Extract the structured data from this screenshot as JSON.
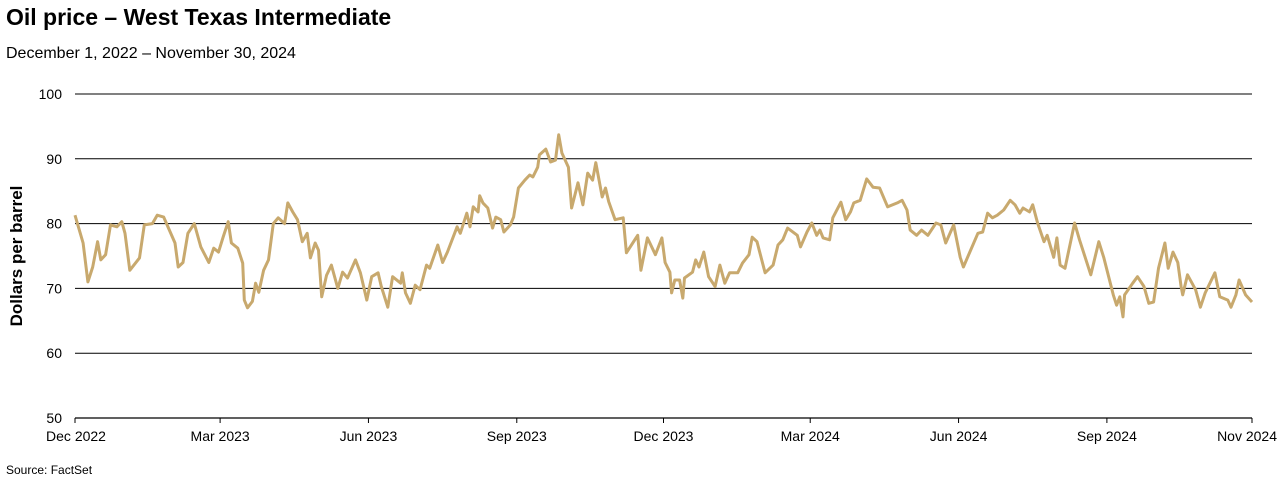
{
  "chart_data": {
    "type": "line",
    "title": "Oil price – West Texas Intermediate",
    "subtitle": "December 1, 2022 – November 30, 2024",
    "xlabel": "",
    "ylabel": "Dollars per barrel",
    "source": "Source: FactSet",
    "ylim": [
      50,
      100
    ],
    "yticks": [
      50,
      60,
      70,
      80,
      90,
      100
    ],
    "xlim": [
      "2022-12-01",
      "2024-11-30"
    ],
    "xticks": [
      {
        "date": "2022-12-01",
        "label": "Dec 2022"
      },
      {
        "date": "2023-03-01",
        "label": "Mar 2023"
      },
      {
        "date": "2023-06-01",
        "label": "Jun 2023"
      },
      {
        "date": "2023-09-01",
        "label": "Sep 2023"
      },
      {
        "date": "2023-12-01",
        "label": "Dec 2023"
      },
      {
        "date": "2024-03-01",
        "label": "Mar 2024"
      },
      {
        "date": "2024-06-01",
        "label": "Jun 2024"
      },
      {
        "date": "2024-09-01",
        "label": "Sep 2024"
      },
      {
        "date": "2024-11-30",
        "label": "Nov 2024"
      }
    ],
    "grid": true,
    "line_color": "#C8A96E",
    "series": [
      {
        "x": [
          "2022-12-01",
          "2022-12-06",
          "2022-12-09",
          "2022-12-12",
          "2022-12-15",
          "2022-12-17",
          "2022-12-20",
          "2022-12-23",
          "2022-12-27",
          "2022-12-30",
          "2023-01-01",
          "2023-01-04",
          "2023-01-10",
          "2023-01-13",
          "2023-01-18",
          "2023-01-21",
          "2023-01-25",
          "2023-01-28",
          "2023-02-01",
          "2023-02-03",
          "2023-02-06",
          "2023-02-09",
          "2023-02-13",
          "2023-02-17",
          "2023-02-22",
          "2023-02-25",
          "2023-02-28",
          "2023-03-03",
          "2023-03-06",
          "2023-03-08",
          "2023-03-12",
          "2023-03-15",
          "2023-03-16",
          "2023-03-18",
          "2023-03-21",
          "2023-03-23",
          "2023-03-25",
          "2023-03-28",
          "2023-03-31",
          "2023-04-03",
          "2023-04-06",
          "2023-04-10",
          "2023-04-12",
          "2023-04-15",
          "2023-04-18",
          "2023-04-21",
          "2023-04-24",
          "2023-04-26",
          "2023-04-29",
          "2023-05-01",
          "2023-05-03",
          "2023-05-06",
          "2023-05-09",
          "2023-05-13",
          "2023-05-16",
          "2023-05-19",
          "2023-05-24",
          "2023-05-27",
          "2023-05-31",
          "2023-06-03",
          "2023-06-07",
          "2023-06-09",
          "2023-06-13",
          "2023-06-16",
          "2023-06-21",
          "2023-06-22",
          "2023-06-24",
          "2023-06-27",
          "2023-06-30",
          "2023-07-03",
          "2023-07-07",
          "2023-07-09",
          "2023-07-14",
          "2023-07-17",
          "2023-07-20",
          "2023-07-26",
          "2023-07-28",
          "2023-08-01",
          "2023-08-03",
          "2023-08-05",
          "2023-08-08",
          "2023-08-09",
          "2023-08-11",
          "2023-08-14",
          "2023-08-17",
          "2023-08-19",
          "2023-08-22",
          "2023-08-24",
          "2023-08-28",
          "2023-08-30",
          "2023-09-02",
          "2023-09-06",
          "2023-09-09",
          "2023-09-11",
          "2023-09-14",
          "2023-09-15",
          "2023-09-19",
          "2023-09-22",
          "2023-09-25",
          "2023-09-27",
          "2023-09-29",
          "2023-10-03",
          "2023-10-05",
          "2023-10-09",
          "2023-10-12",
          "2023-10-15",
          "2023-10-18",
          "2023-10-20",
          "2023-10-24",
          "2023-10-26",
          "2023-10-28",
          "2023-11-01",
          "2023-11-06",
          "2023-11-08",
          "2023-11-15",
          "2023-11-17",
          "2023-11-21",
          "2023-11-26",
          "2023-11-30",
          "2023-12-02",
          "2023-12-05",
          "2023-12-06",
          "2023-12-08",
          "2023-12-11",
          "2023-12-13",
          "2023-12-14",
          "2023-12-19",
          "2023-12-21",
          "2023-12-23",
          "2023-12-26",
          "2023-12-29",
          "2024-01-02",
          "2024-01-05",
          "2024-01-08",
          "2024-01-11",
          "2024-01-16",
          "2024-01-19",
          "2024-01-23",
          "2024-01-25",
          "2024-01-28",
          "2024-02-02",
          "2024-02-07",
          "2024-02-10",
          "2024-02-13",
          "2024-02-16",
          "2024-02-22",
          "2024-02-24",
          "2024-02-28",
          "2024-03-02",
          "2024-03-05",
          "2024-03-07",
          "2024-03-09",
          "2024-03-13",
          "2024-03-15",
          "2024-03-20",
          "2024-03-23",
          "2024-03-26",
          "2024-03-28",
          "2024-04-01",
          "2024-04-05",
          "2024-04-09",
          "2024-04-13",
          "2024-04-18",
          "2024-04-24",
          "2024-04-27",
          "2024-04-30",
          "2024-05-02",
          "2024-05-06",
          "2024-05-09",
          "2024-05-13",
          "2024-05-18",
          "2024-05-21",
          "2024-05-24",
          "2024-05-29",
          "2024-06-02",
          "2024-06-04",
          "2024-06-08",
          "2024-06-13",
          "2024-06-16",
          "2024-06-19",
          "2024-06-22",
          "2024-06-25",
          "2024-06-29",
          "2024-07-03",
          "2024-07-06",
          "2024-07-09",
          "2024-07-11",
          "2024-07-15",
          "2024-07-17",
          "2024-07-20",
          "2024-07-24",
          "2024-07-26",
          "2024-07-30",
          "2024-08-01",
          "2024-08-03",
          "2024-08-06",
          "2024-08-12",
          "2024-08-15",
          "2024-08-22",
          "2024-08-27",
          "2024-08-30",
          "2024-09-05",
          "2024-09-07",
          "2024-09-09",
          "2024-09-11",
          "2024-09-12",
          "2024-09-17",
          "2024-09-20",
          "2024-09-24",
          "2024-09-27",
          "2024-09-30",
          "2024-10-03",
          "2024-10-07",
          "2024-10-09",
          "2024-10-12",
          "2024-10-15",
          "2024-10-17",
          "2024-10-18",
          "2024-10-21",
          "2024-10-26",
          "2024-10-29",
          "2024-11-01",
          "2024-11-07",
          "2024-11-10",
          "2024-11-15",
          "2024-11-17",
          "2024-11-20",
          "2024-11-22",
          "2024-11-26",
          "2024-11-30"
        ],
        "y": [
          81.3,
          77,
          71,
          73.3,
          77.2,
          74.4,
          75.2,
          79.8,
          79.5,
          80.3,
          78.5,
          72.8,
          74.7,
          79.8,
          80,
          81.3,
          81,
          79.3,
          77,
          73.3,
          74,
          78.5,
          80,
          76.4,
          74,
          76.2,
          75.6,
          78,
          80.3,
          77,
          76.2,
          73.9,
          68.2,
          67,
          68,
          70.8,
          69.4,
          72.8,
          74.4,
          80,
          80.9,
          80,
          83.2,
          81.8,
          80.6,
          77.2,
          78.5,
          74.7,
          77,
          75.9,
          68.7,
          72,
          73.6,
          70,
          72.5,
          71.6,
          74.4,
          72.4,
          68.2,
          71.8,
          72.4,
          70.3,
          67.1,
          71.8,
          70.8,
          72.4,
          69.3,
          67.7,
          70.5,
          69.8,
          73.6,
          73.1,
          76.7,
          74,
          75.6,
          79.5,
          78.5,
          81.6,
          79.5,
          82.6,
          81.8,
          84.3,
          83.2,
          82.4,
          79.3,
          81,
          80.6,
          78.7,
          79.8,
          81,
          85.5,
          86.7,
          87.5,
          87.2,
          88.7,
          90.6,
          91.5,
          89.5,
          89.8,
          93.7,
          90.9,
          88.7,
          82.4,
          86.3,
          82.9,
          87.8,
          86.7,
          89.4,
          84.1,
          85.5,
          83.4,
          80.6,
          80.9,
          75.5,
          78.2,
          72.8,
          77.8,
          75.2,
          77.8,
          74,
          72.5,
          69.3,
          71.3,
          71.3,
          68.5,
          71.6,
          72.5,
          74.4,
          73.3,
          75.6,
          71.8,
          70.3,
          73.6,
          70.8,
          72.4,
          72.4,
          73.9,
          75.2,
          77.9,
          77.2,
          72.4,
          73.6,
          76.7,
          77.5,
          79.3,
          78.2,
          76.4,
          78.7,
          80.1,
          78.2,
          79,
          77.8,
          77.5,
          80.9,
          83.3,
          80.6,
          81.8,
          83.2,
          83.6,
          86.9,
          85.6,
          85.5,
          82.6,
          83.2,
          83.6,
          82.1,
          79,
          78.2,
          79,
          78.2,
          80.1,
          79.8,
          77,
          79.8,
          74.8,
          73.3,
          75.6,
          78.5,
          78.7,
          81.6,
          80.9,
          81.3,
          82.1,
          83.6,
          82.9,
          81.6,
          82.4,
          81.8,
          82.9,
          80.1,
          77.2,
          78.2,
          74.8,
          77.8,
          73.6,
          73.1,
          80.1,
          77.5,
          72.1,
          77.2,
          74.8,
          69,
          67.4,
          68.7,
          65.6,
          69,
          70.8,
          71.8,
          70.3,
          67.7,
          67.9,
          73.1,
          77,
          73.1,
          75.6,
          74,
          70.3,
          69,
          72.1,
          69.8,
          67.1,
          69.3,
          72.4,
          68.7,
          68.2,
          67.1,
          69,
          71.3,
          69,
          67.9
        ]
      }
    ]
  }
}
